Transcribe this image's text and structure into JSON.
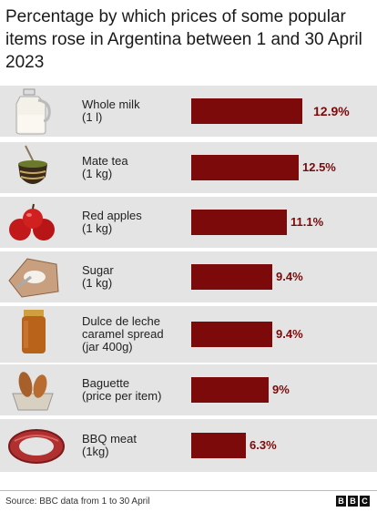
{
  "header": {
    "title": "Percentage by which prices of some popular items rose in Argentina between 1 and 30 April 2023"
  },
  "chart_data": {
    "type": "bar",
    "orientation": "horizontal",
    "categories": [
      "Whole milk (1 l)",
      "Mate tea (1 kg)",
      "Red apples (1 kg)",
      "Sugar (1 kg)",
      "Dulce de leche caramel spread (jar 400g)",
      "Baguette (price per item)",
      "BBQ meat (1kg)"
    ],
    "values": [
      12.9,
      12.5,
      11.1,
      9.4,
      9.4,
      9,
      6.3
    ],
    "value_labels": [
      "12.9%",
      "12.5%",
      "11.1%",
      "9.4%",
      "9.4%",
      "9%",
      "6.3%"
    ],
    "label_lines": [
      [
        "Whole milk",
        "(1 l)"
      ],
      [
        "Mate tea",
        "(1 kg)"
      ],
      [
        "Red apples",
        "(1 kg)"
      ],
      [
        "Sugar",
        "(1 kg)"
      ],
      [
        "Dulce de leche",
        "caramel spread",
        "(jar 400g)"
      ],
      [
        "Baguette",
        "(price per item)"
      ],
      [
        "BBQ meat",
        "(1kg)"
      ]
    ],
    "icons": [
      "milk-jug-icon",
      "mate-gourd-icon",
      "red-apples-icon",
      "sugar-bag-icon",
      "dulce-de-leche-jar-icon",
      "baguette-basket-icon",
      "bbq-sausage-icon"
    ],
    "bar_color": "#7c0a0a",
    "unit": "%",
    "grid": false,
    "legend": "none"
  },
  "footer": {
    "source": "Source: BBC data from 1 to 30 April",
    "logo_letters": [
      "B",
      "B",
      "C"
    ]
  }
}
